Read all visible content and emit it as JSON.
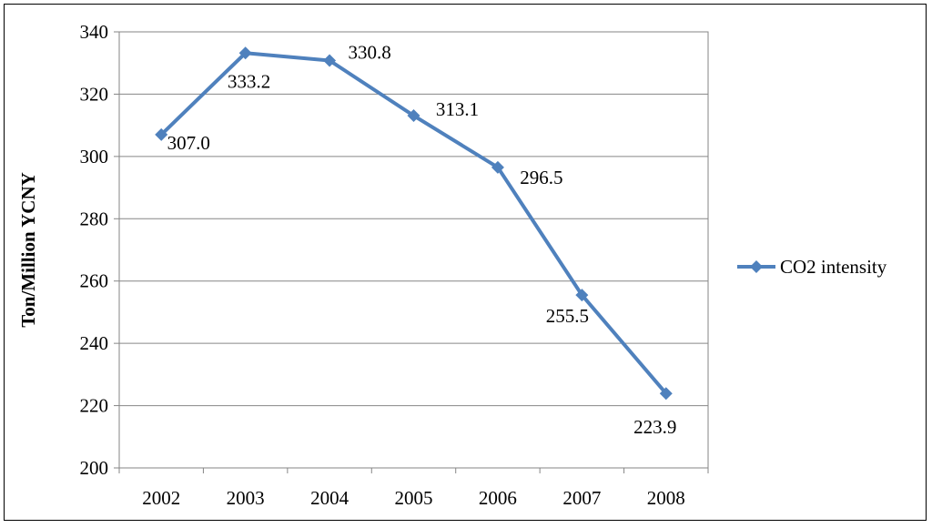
{
  "chart_data": {
    "type": "line",
    "title": "",
    "xlabel": "",
    "ylabel": "Ton/Million YCNY",
    "categories": [
      "2002",
      "2003",
      "2004",
      "2005",
      "2006",
      "2007",
      "2008"
    ],
    "series": [
      {
        "name": "CO2 intensity",
        "values": [
          307.0,
          333.2,
          330.8,
          313.1,
          296.5,
          255.5,
          223.9
        ],
        "labels": [
          "307.0",
          "333.2",
          "330.8",
          "313.1",
          "296.5",
          "255.5",
          "223.9"
        ],
        "color": "#4F81BD"
      }
    ],
    "ylim": [
      200,
      340
    ],
    "yticks": [
      "200",
      "220",
      "240",
      "260",
      "280",
      "300",
      "320",
      "340"
    ],
    "grid": true,
    "legend_position": "right"
  }
}
